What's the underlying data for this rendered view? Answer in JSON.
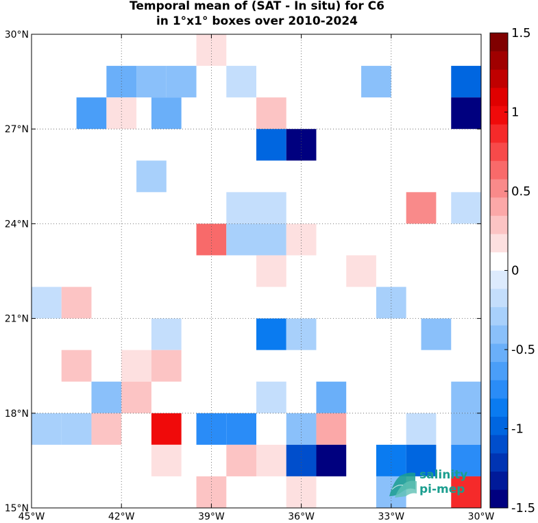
{
  "chart_data": {
    "type": "heatmap",
    "title_lines": [
      "Temporal mean of (SAT - In situ) for C6",
      "in 1°x1° boxes over 2010-2024"
    ],
    "x_ticks": [
      {
        "value": -45,
        "label": "45°W"
      },
      {
        "value": -42,
        "label": "42°W"
      },
      {
        "value": -39,
        "label": "39°W"
      },
      {
        "value": -36,
        "label": "36°W"
      },
      {
        "value": -33,
        "label": "33°W"
      },
      {
        "value": -30,
        "label": "30°W"
      }
    ],
    "y_ticks": [
      {
        "value": 15,
        "label": "15°N"
      },
      {
        "value": 18,
        "label": "18°N"
      },
      {
        "value": 21,
        "label": "21°N"
      },
      {
        "value": 24,
        "label": "24°N"
      },
      {
        "value": 27,
        "label": "27°N"
      },
      {
        "value": 30,
        "label": "30°N"
      }
    ],
    "xlim": [
      -45,
      -30
    ],
    "ylim": [
      15,
      30
    ],
    "grid": true,
    "colorbar": {
      "min": -1.5,
      "max": 1.5,
      "ticks": [
        {
          "value": 1.5,
          "label": "1.5"
        },
        {
          "value": 1,
          "label": "1"
        },
        {
          "value": 0.5,
          "label": "0.5"
        },
        {
          "value": 0,
          "label": "0"
        },
        {
          "value": -0.5,
          "label": "-0.5"
        },
        {
          "value": -1,
          "label": "-1"
        },
        {
          "value": -1.5,
          "label": "-1.5"
        }
      ],
      "colors": [
        "#00007f",
        "#001a99",
        "#0034b3",
        "#004ecc",
        "#0066e0",
        "#0a7bf0",
        "#2a8cf7",
        "#4a9ef8",
        "#6aaff9",
        "#8ac0fa",
        "#a8d0fb",
        "#c4defc",
        "#ddebfd",
        "#ffffff",
        "#fde0e0",
        "#fcc4c4",
        "#fba8a8",
        "#f98a8a",
        "#f86a6a",
        "#f74a4a",
        "#f52a2a",
        "#f00a0a",
        "#e00000",
        "#c00000",
        "#a00000",
        "#800000"
      ]
    },
    "cells": [
      {
        "lon": -39.0,
        "lat": 29.5,
        "value": 0.15
      },
      {
        "lon": -42.0,
        "lat": 28.5,
        "value": -0.55
      },
      {
        "lon": -41.0,
        "lat": 28.5,
        "value": -0.35
      },
      {
        "lon": -40.0,
        "lat": 28.5,
        "value": -0.35
      },
      {
        "lon": -38.0,
        "lat": 28.5,
        "value": -0.15
      },
      {
        "lon": -33.5,
        "lat": 28.5,
        "value": -0.35
      },
      {
        "lon": -30.5,
        "lat": 28.5,
        "value": -1.0
      },
      {
        "lon": -43.0,
        "lat": 27.5,
        "value": -0.6
      },
      {
        "lon": -42.0,
        "lat": 27.5,
        "value": 0.15
      },
      {
        "lon": -40.5,
        "lat": 27.5,
        "value": -0.55
      },
      {
        "lon": -37.0,
        "lat": 27.5,
        "value": 0.3
      },
      {
        "lon": -30.5,
        "lat": 27.5,
        "value": -1.5
      },
      {
        "lon": -37.0,
        "lat": 26.5,
        "value": -0.95
      },
      {
        "lon": -36.0,
        "lat": 26.5,
        "value": -1.5
      },
      {
        "lon": -41.0,
        "lat": 25.5,
        "value": -0.25
      },
      {
        "lon": -38.0,
        "lat": 24.5,
        "value": -0.2
      },
      {
        "lon": -37.0,
        "lat": 24.5,
        "value": -0.2
      },
      {
        "lon": -32.0,
        "lat": 24.5,
        "value": 0.55
      },
      {
        "lon": -30.5,
        "lat": 24.5,
        "value": -0.15
      },
      {
        "lon": -39.0,
        "lat": 23.5,
        "value": 0.65
      },
      {
        "lon": -38.0,
        "lat": 23.5,
        "value": -0.25
      },
      {
        "lon": -37.0,
        "lat": 23.5,
        "value": -0.25
      },
      {
        "lon": -36.0,
        "lat": 23.5,
        "value": 0.15
      },
      {
        "lon": -37.0,
        "lat": 22.5,
        "value": 0.15
      },
      {
        "lon": -34.0,
        "lat": 22.5,
        "value": 0.15
      },
      {
        "lon": -44.5,
        "lat": 21.5,
        "value": -0.15
      },
      {
        "lon": -43.5,
        "lat": 21.5,
        "value": 0.3
      },
      {
        "lon": -33.0,
        "lat": 21.5,
        "value": -0.25
      },
      {
        "lon": -40.5,
        "lat": 20.5,
        "value": -0.15
      },
      {
        "lon": -37.0,
        "lat": 20.5,
        "value": -0.85
      },
      {
        "lon": -36.0,
        "lat": 20.5,
        "value": -0.25
      },
      {
        "lon": -31.5,
        "lat": 20.5,
        "value": -0.4
      },
      {
        "lon": -43.5,
        "lat": 19.5,
        "value": 0.3
      },
      {
        "lon": -41.5,
        "lat": 19.5,
        "value": 0.15
      },
      {
        "lon": -40.5,
        "lat": 19.5,
        "value": 0.3
      },
      {
        "lon": -42.5,
        "lat": 18.5,
        "value": -0.4
      },
      {
        "lon": -41.5,
        "lat": 18.5,
        "value": 0.3
      },
      {
        "lon": -37.0,
        "lat": 18.5,
        "value": -0.15
      },
      {
        "lon": -35.0,
        "lat": 18.5,
        "value": -0.55
      },
      {
        "lon": -30.5,
        "lat": 18.5,
        "value": -0.35
      },
      {
        "lon": -44.5,
        "lat": 17.5,
        "value": -0.3
      },
      {
        "lon": -43.5,
        "lat": 17.5,
        "value": -0.3
      },
      {
        "lon": -42.5,
        "lat": 17.5,
        "value": 0.3
      },
      {
        "lon": -40.5,
        "lat": 17.5,
        "value": 1.0
      },
      {
        "lon": -39.0,
        "lat": 17.5,
        "value": -0.7
      },
      {
        "lon": -38.0,
        "lat": 17.5,
        "value": -0.7
      },
      {
        "lon": -36.0,
        "lat": 17.5,
        "value": -0.4
      },
      {
        "lon": -35.0,
        "lat": 17.5,
        "value": 0.35
      },
      {
        "lon": -32.0,
        "lat": 17.5,
        "value": -0.15
      },
      {
        "lon": -30.5,
        "lat": 17.5,
        "value": -0.35
      },
      {
        "lon": -40.5,
        "lat": 16.5,
        "value": 0.15
      },
      {
        "lon": -38.0,
        "lat": 16.5,
        "value": 0.3
      },
      {
        "lon": -37.0,
        "lat": 16.5,
        "value": 0.15
      },
      {
        "lon": -36.0,
        "lat": 16.5,
        "value": -1.15
      },
      {
        "lon": -35.0,
        "lat": 16.5,
        "value": -1.5
      },
      {
        "lon": -33.0,
        "lat": 16.5,
        "value": -0.85
      },
      {
        "lon": -32.0,
        "lat": 16.5,
        "value": -1.0
      },
      {
        "lon": -30.5,
        "lat": 16.5,
        "value": -0.7
      },
      {
        "lon": -39.0,
        "lat": 15.5,
        "value": 0.3
      },
      {
        "lon": -36.0,
        "lat": 15.5,
        "value": 0.15
      },
      {
        "lon": -33.0,
        "lat": 15.5,
        "value": -0.35
      },
      {
        "lon": -30.5,
        "lat": 15.5,
        "value": 0.85
      }
    ]
  },
  "logo": {
    "line1": "salinity",
    "line2": "pi-mep"
  }
}
